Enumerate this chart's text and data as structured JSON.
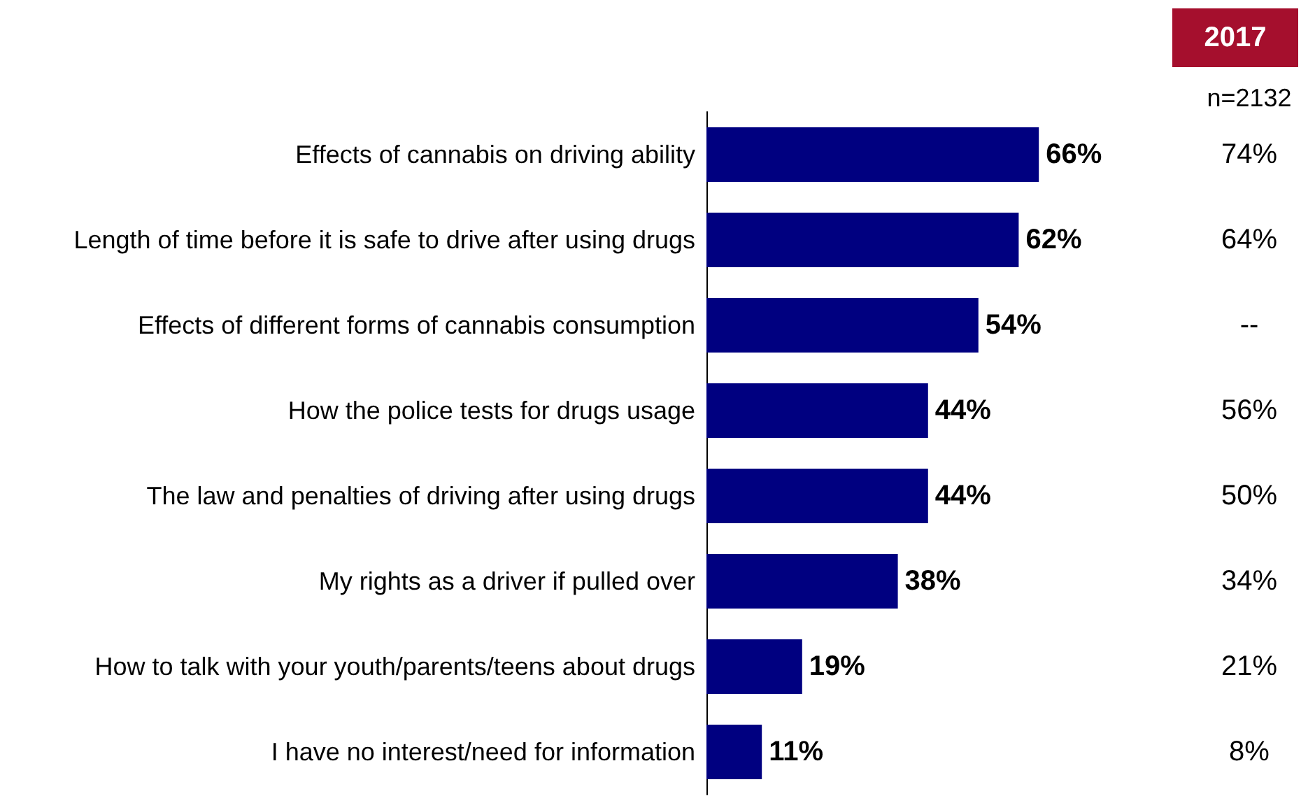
{
  "chart_data": {
    "type": "bar",
    "orientation": "horizontal",
    "categories": [
      "Effects of cannabis on driving ability",
      "Length of time before it is safe to drive after using drugs",
      "Effects of different forms of cannabis consumption",
      "How the police tests for drugs usage",
      "The law and penalties of driving after using drugs",
      "My rights as a driver if pulled over",
      "How to talk with your youth/parents/teens about drugs",
      "I have no interest/need for information"
    ],
    "series": [
      {
        "color": "#000080",
        "values": [
          66,
          62,
          54,
          44,
          44,
          38,
          19,
          11
        ],
        "value_labels": [
          "66%",
          "62%",
          "54%",
          "44%",
          "44%",
          "38%",
          "19%",
          "11%"
        ]
      }
    ],
    "grid": false,
    "annotations": [
      "2017",
      "n=2132",
      "74%",
      "64%",
      "--",
      "56%",
      "50%",
      "34%",
      "21%",
      "8%"
    ]
  }
}
